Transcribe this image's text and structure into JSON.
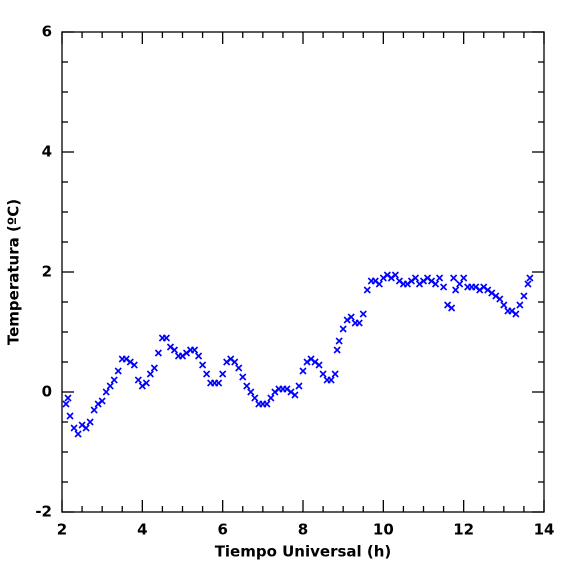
{
  "chart_data": {
    "type": "scatter",
    "xlabel": "Tiempo Universal (h)",
    "ylabel": "Temperatura (ºC)",
    "color": "#0000ff",
    "marker": "x",
    "xlim": [
      2,
      14
    ],
    "ylim": [
      -2,
      6
    ],
    "xticks": [
      2,
      4,
      6,
      8,
      10,
      12,
      14
    ],
    "yticks": [
      -2,
      0,
      2,
      4,
      6
    ],
    "xminorticks": [
      2.5,
      3,
      3.5,
      4.5,
      5,
      5.5,
      6.5,
      7,
      7.5,
      8.5,
      9,
      9.5,
      10.5,
      11,
      11.5,
      12.5,
      13,
      13.5
    ],
    "yminorticks": [
      -1.5,
      -1,
      -0.5,
      0.5,
      1,
      1.5,
      2.5,
      3,
      3.5,
      4.5,
      5,
      5.5
    ],
    "x": [
      2.1,
      2.15,
      2.2,
      2.3,
      2.4,
      2.5,
      2.6,
      2.7,
      2.8,
      2.9,
      3.0,
      3.1,
      3.2,
      3.3,
      3.4,
      3.5,
      3.6,
      3.7,
      3.8,
      3.9,
      4.0,
      4.1,
      4.2,
      4.3,
      4.4,
      4.5,
      4.6,
      4.7,
      4.8,
      4.9,
      5.0,
      5.1,
      5.2,
      5.3,
      5.4,
      5.5,
      5.6,
      5.7,
      5.8,
      5.9,
      6.0,
      6.1,
      6.2,
      6.3,
      6.4,
      6.5,
      6.6,
      6.7,
      6.8,
      6.9,
      7.0,
      7.1,
      7.2,
      7.3,
      7.4,
      7.5,
      7.6,
      7.7,
      7.8,
      7.9,
      8.0,
      8.1,
      8.2,
      8.3,
      8.4,
      8.5,
      8.6,
      8.7,
      8.8,
      8.85,
      8.9,
      9.0,
      9.1,
      9.2,
      9.3,
      9.4,
      9.5,
      9.6,
      9.7,
      9.8,
      9.9,
      10.0,
      10.1,
      10.2,
      10.3,
      10.4,
      10.5,
      10.6,
      10.7,
      10.8,
      10.9,
      11.0,
      11.1,
      11.2,
      11.3,
      11.4,
      11.5,
      11.6,
      11.7,
      11.75,
      11.8,
      11.9,
      12.0,
      12.1,
      12.2,
      12.3,
      12.4,
      12.5,
      12.6,
      12.7,
      12.8,
      12.9,
      13.0,
      13.1,
      13.2,
      13.3,
      13.4,
      13.5,
      13.6,
      13.65
    ],
    "values": [
      -0.2,
      -0.1,
      -0.4,
      -0.6,
      -0.7,
      -0.55,
      -0.6,
      -0.5,
      -0.3,
      -0.2,
      -0.15,
      0.0,
      0.1,
      0.2,
      0.35,
      0.55,
      0.55,
      0.5,
      0.45,
      0.2,
      0.1,
      0.15,
      0.3,
      0.4,
      0.65,
      0.9,
      0.9,
      0.75,
      0.7,
      0.6,
      0.6,
      0.65,
      0.7,
      0.7,
      0.6,
      0.45,
      0.3,
      0.15,
      0.15,
      0.15,
      0.3,
      0.5,
      0.55,
      0.5,
      0.4,
      0.25,
      0.1,
      0.0,
      -0.1,
      -0.2,
      -0.2,
      -0.2,
      -0.1,
      0.0,
      0.05,
      0.05,
      0.05,
      0.0,
      -0.05,
      0.1,
      0.35,
      0.5,
      0.55,
      0.5,
      0.45,
      0.3,
      0.2,
      0.2,
      0.3,
      0.7,
      0.85,
      1.05,
      1.2,
      1.25,
      1.15,
      1.15,
      1.3,
      1.7,
      1.85,
      1.85,
      1.8,
      1.9,
      1.95,
      1.9,
      1.95,
      1.85,
      1.8,
      1.8,
      1.85,
      1.9,
      1.8,
      1.85,
      1.9,
      1.85,
      1.8,
      1.9,
      1.75,
      1.45,
      1.4,
      1.9,
      1.7,
      1.8,
      1.9,
      1.75,
      1.75,
      1.75,
      1.7,
      1.75,
      1.7,
      1.65,
      1.6,
      1.55,
      1.45,
      1.35,
      1.35,
      1.3,
      1.45,
      1.6,
      1.8,
      1.9
    ]
  }
}
